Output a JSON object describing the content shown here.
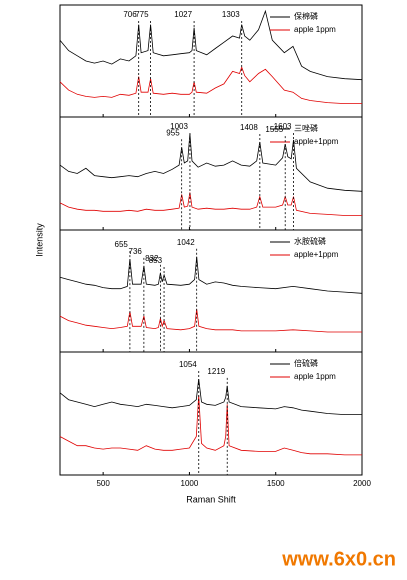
{
  "ylabel": "Intensity",
  "watermark": "www.6x0.cn",
  "chart_data": [
    {
      "type": "line",
      "xlim": [
        250,
        2000
      ],
      "ylim": [
        0,
        100
      ],
      "peaks": [
        706,
        775,
        1027,
        1303
      ],
      "x": [
        250,
        300,
        350,
        400,
        450,
        500,
        550,
        600,
        650,
        690,
        706,
        720,
        760,
        775,
        790,
        850,
        900,
        950,
        1000,
        1015,
        1027,
        1040,
        1100,
        1150,
        1200,
        1250,
        1290,
        1303,
        1320,
        1350,
        1400,
        1440,
        1480,
        1550,
        1600,
        1650,
        1700,
        1800,
        1900,
        2000
      ],
      "series": [
        {
          "name": "保棉磷",
          "color": "#000000",
          "values": [
            70,
            60,
            55,
            50,
            48,
            50,
            47,
            52,
            50,
            55,
            85,
            58,
            60,
            85,
            58,
            55,
            56,
            57,
            58,
            60,
            82,
            60,
            56,
            62,
            68,
            74,
            72,
            85,
            74,
            70,
            80,
            98,
            70,
            58,
            64,
            45,
            40,
            35,
            33,
            32
          ]
        },
        {
          "name": "apple 1ppm",
          "color": "#e00000",
          "values": [
            30,
            22,
            18,
            16,
            15,
            16,
            15,
            18,
            17,
            19,
            35,
            20,
            20,
            33,
            19,
            18,
            19,
            18,
            18,
            20,
            30,
            20,
            19,
            24,
            28,
            40,
            38,
            44,
            36,
            30,
            38,
            42,
            35,
            22,
            20,
            14,
            12,
            10,
            9,
            9
          ]
        }
      ]
    },
    {
      "type": "line",
      "xlim": [
        250,
        2000
      ],
      "ylim": [
        0,
        100
      ],
      "peaks": [
        955,
        1003,
        1408,
        1555,
        1603
      ],
      "x": [
        250,
        300,
        350,
        400,
        450,
        500,
        550,
        600,
        650,
        700,
        750,
        800,
        850,
        900,
        940,
        955,
        970,
        990,
        1003,
        1015,
        1050,
        1100,
        1150,
        1200,
        1250,
        1300,
        1350,
        1390,
        1408,
        1425,
        1500,
        1540,
        1555,
        1570,
        1590,
        1603,
        1620,
        1700,
        1800,
        1900,
        2000
      ],
      "series": [
        {
          "name": "三唑磷",
          "color": "#000000",
          "values": [
            58,
            52,
            50,
            55,
            48,
            47,
            46,
            47,
            48,
            47,
            50,
            52,
            50,
            54,
            58,
            75,
            60,
            62,
            88,
            62,
            56,
            60,
            57,
            58,
            62,
            58,
            57,
            62,
            80,
            60,
            58,
            65,
            78,
            66,
            64,
            82,
            55,
            42,
            36,
            34,
            33
          ]
        },
        {
          "name": "apple+1ppm",
          "color": "#e00000",
          "values": [
            22,
            18,
            16,
            15,
            15,
            14,
            14,
            14,
            15,
            14,
            16,
            15,
            15,
            16,
            17,
            30,
            18,
            19,
            32,
            18,
            16,
            17,
            16,
            16,
            17,
            16,
            16,
            18,
            28,
            18,
            18,
            20,
            28,
            20,
            20,
            28,
            15,
            12,
            11,
            10,
            10
          ]
        }
      ]
    },
    {
      "type": "line",
      "xlim": [
        250,
        2000
      ],
      "ylim": [
        0,
        100
      ],
      "peaks": [
        655,
        736,
        832,
        853,
        1042
      ],
      "x": [
        250,
        300,
        350,
        400,
        450,
        500,
        550,
        600,
        640,
        655,
        670,
        720,
        736,
        750,
        800,
        820,
        832,
        842,
        853,
        870,
        950,
        1000,
        1030,
        1042,
        1055,
        1100,
        1150,
        1200,
        1250,
        1300,
        1400,
        1500,
        1600,
        1700,
        1800,
        1900,
        2000
      ],
      "series": [
        {
          "name": "水胺硫磷",
          "color": "#000000",
          "values": [
            62,
            60,
            58,
            56,
            55,
            53,
            52,
            52,
            54,
            78,
            56,
            56,
            72,
            56,
            55,
            56,
            66,
            58,
            64,
            56,
            55,
            56,
            60,
            80,
            60,
            56,
            58,
            57,
            55,
            54,
            53,
            52,
            54,
            52,
            50,
            49,
            48
          ]
        },
        {
          "name": "apple+1ppm",
          "color": "#e00000",
          "values": [
            28,
            24,
            22,
            20,
            19,
            18,
            17,
            18,
            19,
            32,
            19,
            19,
            28,
            18,
            17,
            18,
            26,
            19,
            24,
            17,
            16,
            17,
            19,
            34,
            19,
            17,
            16,
            16,
            16,
            15,
            15,
            15,
            16,
            15,
            14,
            14,
            14
          ]
        }
      ]
    },
    {
      "type": "line",
      "xlim": [
        250,
        2000
      ],
      "ylim": [
        0,
        100
      ],
      "xlabel": "Raman Shift",
      "xticks": [
        500,
        1000,
        1500,
        2000
      ],
      "peaks": [
        1054,
        1219
      ],
      "x": [
        250,
        300,
        350,
        400,
        450,
        500,
        550,
        600,
        650,
        700,
        750,
        800,
        850,
        900,
        950,
        1000,
        1040,
        1054,
        1070,
        1100,
        1150,
        1200,
        1210,
        1219,
        1230,
        1300,
        1400,
        1500,
        1550,
        1600,
        1650,
        1700,
        1800,
        1900,
        2000
      ],
      "series": [
        {
          "name": "倍硫磷",
          "color": "#000000",
          "values": [
            68,
            62,
            60,
            58,
            56,
            58,
            60,
            58,
            57,
            56,
            58,
            57,
            56,
            55,
            56,
            57,
            62,
            80,
            60,
            58,
            57,
            60,
            64,
            74,
            60,
            56,
            55,
            54,
            56,
            55,
            53,
            52,
            50,
            49,
            49
          ]
        },
        {
          "name": "apple 1ppm",
          "color": "#e00000",
          "values": [
            30,
            26,
            22,
            22,
            20,
            19,
            20,
            20,
            19,
            18,
            22,
            19,
            18,
            18,
            19,
            20,
            30,
            66,
            24,
            20,
            18,
            22,
            30,
            58,
            22,
            18,
            17,
            17,
            20,
            18,
            16,
            15,
            15,
            14,
            14
          ]
        }
      ]
    }
  ]
}
